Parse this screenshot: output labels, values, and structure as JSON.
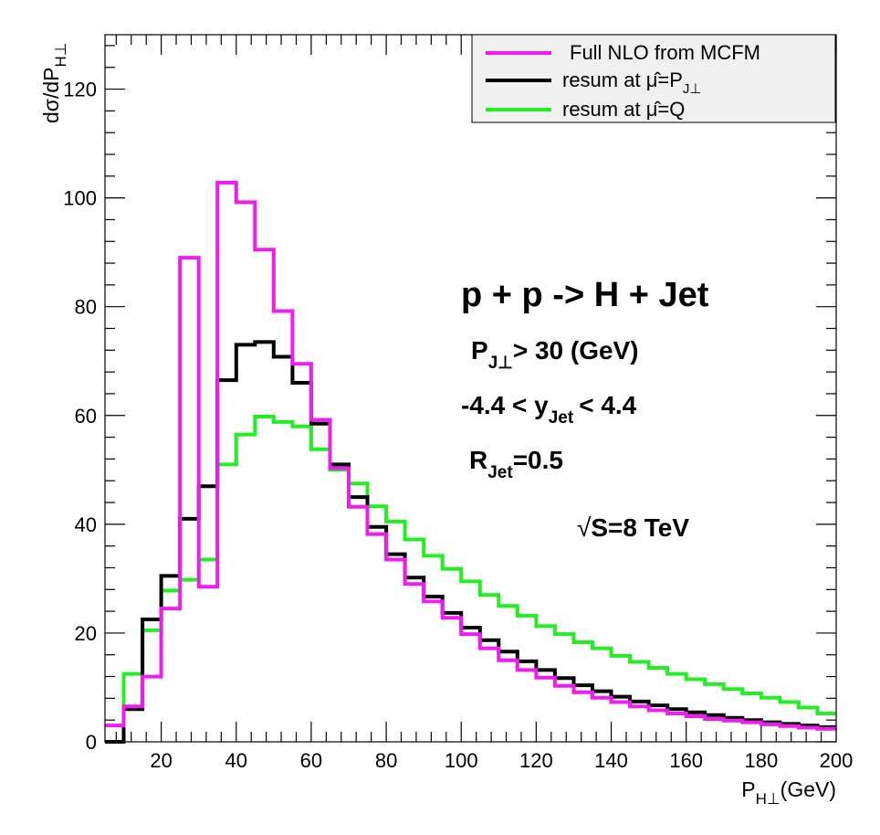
{
  "chart_data": {
    "type": "line",
    "style": "step-histogram",
    "title": "",
    "xlabel": "P_H⊥(GeV)",
    "ylabel": "dσ/dP_H⊥",
    "xlim": [
      5,
      200
    ],
    "ylim": [
      0,
      130
    ],
    "grid": false,
    "bin_width": 5,
    "x_ticks": [
      20,
      40,
      60,
      80,
      100,
      120,
      140,
      160,
      180,
      200
    ],
    "y_ticks": [
      0,
      20,
      40,
      60,
      80,
      100,
      120
    ],
    "bin_edges": [
      5,
      10,
      15,
      20,
      25,
      30,
      35,
      40,
      45,
      50,
      55,
      60,
      65,
      70,
      75,
      80,
      85,
      90,
      95,
      100,
      105,
      110,
      115,
      120,
      125,
      130,
      135,
      140,
      145,
      150,
      155,
      160,
      165,
      170,
      175,
      180,
      185,
      190,
      195,
      200
    ],
    "series": [
      {
        "name": "Full NLO from MCFM",
        "color": "#ee1cee",
        "values": [
          3,
          6.5,
          12,
          24.5,
          89,
          28.5,
          102.8,
          99.2,
          90.5,
          79.2,
          69.5,
          59.2,
          50.3,
          43.2,
          38.2,
          33.5,
          29,
          25.8,
          22.8,
          19.8,
          17.2,
          15,
          13.2,
          11.8,
          10.3,
          9.1,
          8.1,
          7.3,
          6.5,
          5.8,
          5.2,
          4.7,
          4.2,
          3.9,
          3.6,
          3.2,
          2.9,
          2.6,
          2.4
        ]
      },
      {
        "name": "resum at μ̂=P_J⊥",
        "color": "#000000",
        "values": [
          0,
          6,
          22.5,
          30.5,
          41,
          47,
          66.5,
          73,
          73.5,
          70.8,
          66,
          58.5,
          51,
          45,
          39.5,
          34.5,
          30.2,
          26.7,
          23.7,
          21,
          18.7,
          16.6,
          14.8,
          13.2,
          11.7,
          10.4,
          9.3,
          8.3,
          7.4,
          6.7,
          6,
          5.4,
          4.9,
          4.4,
          4,
          3.6,
          3.3,
          3,
          2.7
        ]
      },
      {
        "name": "resum at μ̂=Q",
        "color": "#22ee22",
        "values": [
          0,
          12.5,
          20.5,
          27.8,
          29.8,
          33.5,
          51,
          56.5,
          59.8,
          58.8,
          58,
          53.8,
          50,
          47.5,
          43.3,
          40.5,
          37.2,
          34.2,
          31.8,
          29.5,
          27,
          25,
          23.2,
          21.3,
          19.8,
          18.3,
          17.2,
          15.8,
          14.7,
          13.6,
          12.5,
          11.5,
          10.6,
          9.7,
          8.9,
          8.1,
          7.3,
          6.3,
          5.2
        ]
      }
    ],
    "legend_position": "top-right",
    "annotations": {
      "process": "p + p -> H + Jet",
      "cut_pt_prefix": "P",
      "cut_pt_sub": "J⊥",
      "cut_pt_suffix": "> 30 (GeV)",
      "cut_y_prefix": "-4.4 < y",
      "cut_y_sub": "Jet",
      "cut_y_suffix": "< 4.4",
      "cut_r_prefix": "R",
      "cut_r_sub": "Jet",
      "cut_r_suffix": "=0.5",
      "energy_sqrt": "√",
      "energy_text": "S=8 TeV"
    },
    "axis_title_parts": {
      "x_main": "P",
      "x_sub": "H⊥",
      "x_unit": "(GeV)",
      "y_main": "dσ/dP",
      "y_sub": "H⊥"
    },
    "legend_parts": [
      {
        "prefix": "Full NLO from MCFM",
        "sub": ""
      },
      {
        "prefix": "resum at μ̂=P",
        "sub": "J⊥"
      },
      {
        "prefix": "resum at μ̂=Q",
        "sub": ""
      }
    ]
  }
}
